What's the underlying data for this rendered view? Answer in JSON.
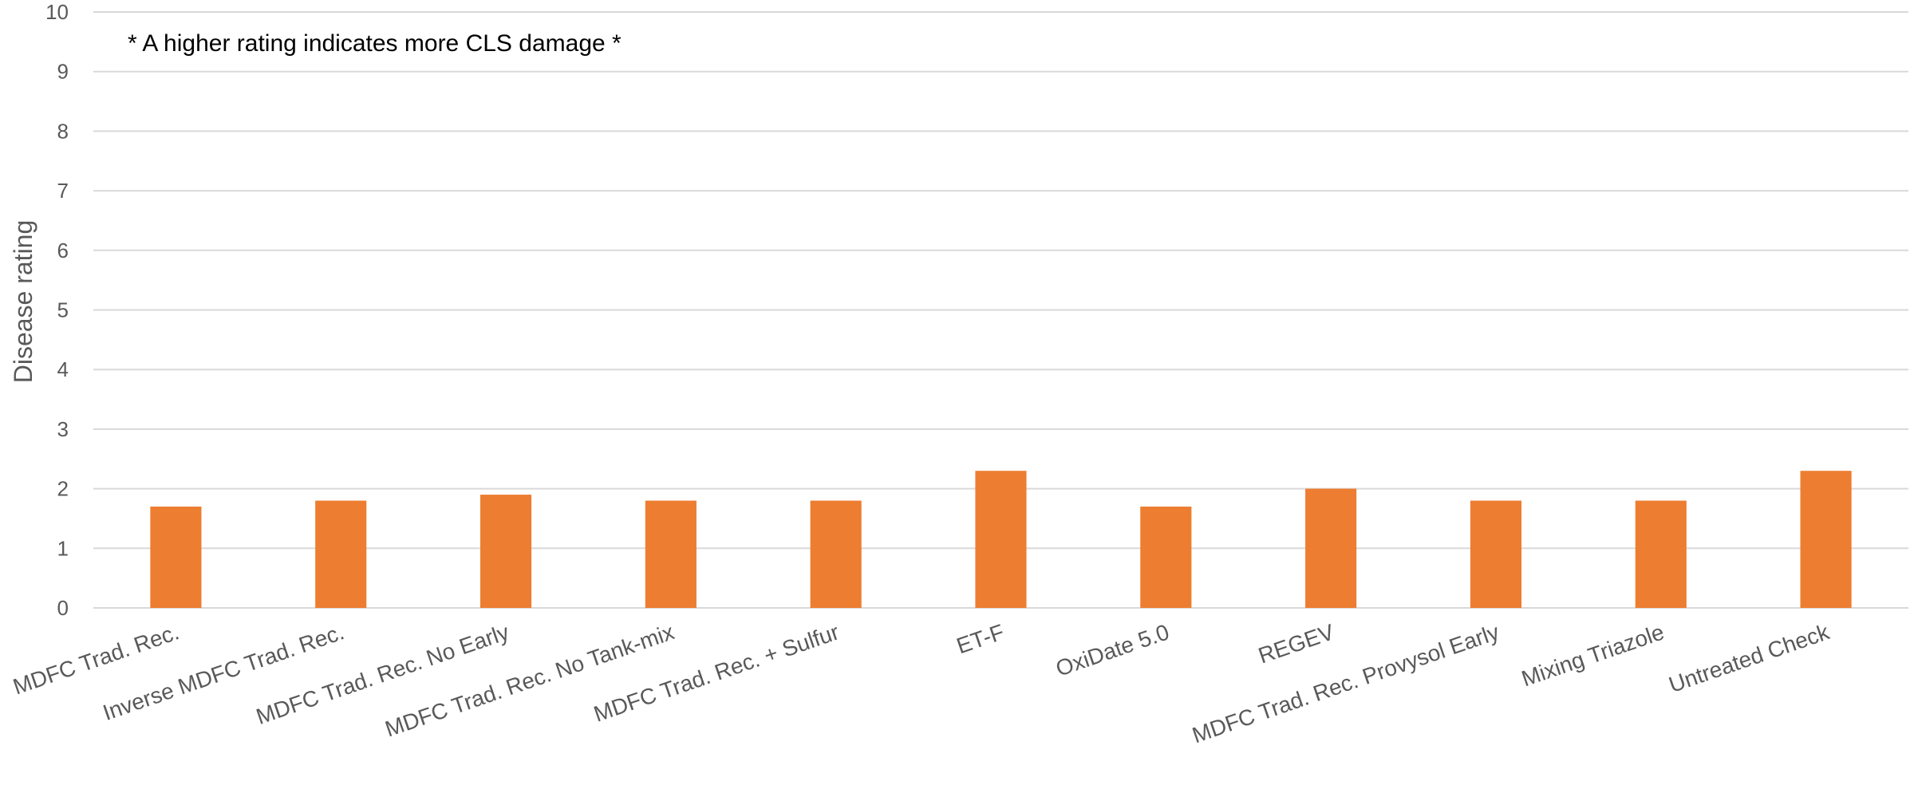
{
  "chart_data": {
    "type": "bar",
    "categories": [
      "MDFC Trad. Rec.",
      "Inverse MDFC Trad. Rec.",
      "MDFC Trad. Rec. No Early",
      "MDFC Trad. Rec. No Tank-mix",
      "MDFC Trad. Rec. + Sulfur",
      "ET-F",
      "OxiDate 5.0",
      "REGEV",
      "MDFC Trad. Rec. Provysol Early",
      "Mixing Triazole",
      "Untreated Check"
    ],
    "values": [
      1.7,
      1.8,
      1.9,
      1.8,
      1.8,
      2.3,
      1.7,
      2.0,
      1.8,
      1.8,
      2.3
    ],
    "title": "",
    "xlabel": "",
    "ylabel": "Disease rating",
    "ylim": [
      0,
      10
    ],
    "yticks": [
      "0",
      "1",
      "2",
      "3",
      "4",
      "5",
      "6",
      "7",
      "8",
      "9",
      "10"
    ],
    "annotation": "* A higher rating indicates more CLS damage *",
    "bar_color": "#ED7D31",
    "grid_color": "#D9D9D9",
    "grid": true,
    "legend": "none"
  }
}
